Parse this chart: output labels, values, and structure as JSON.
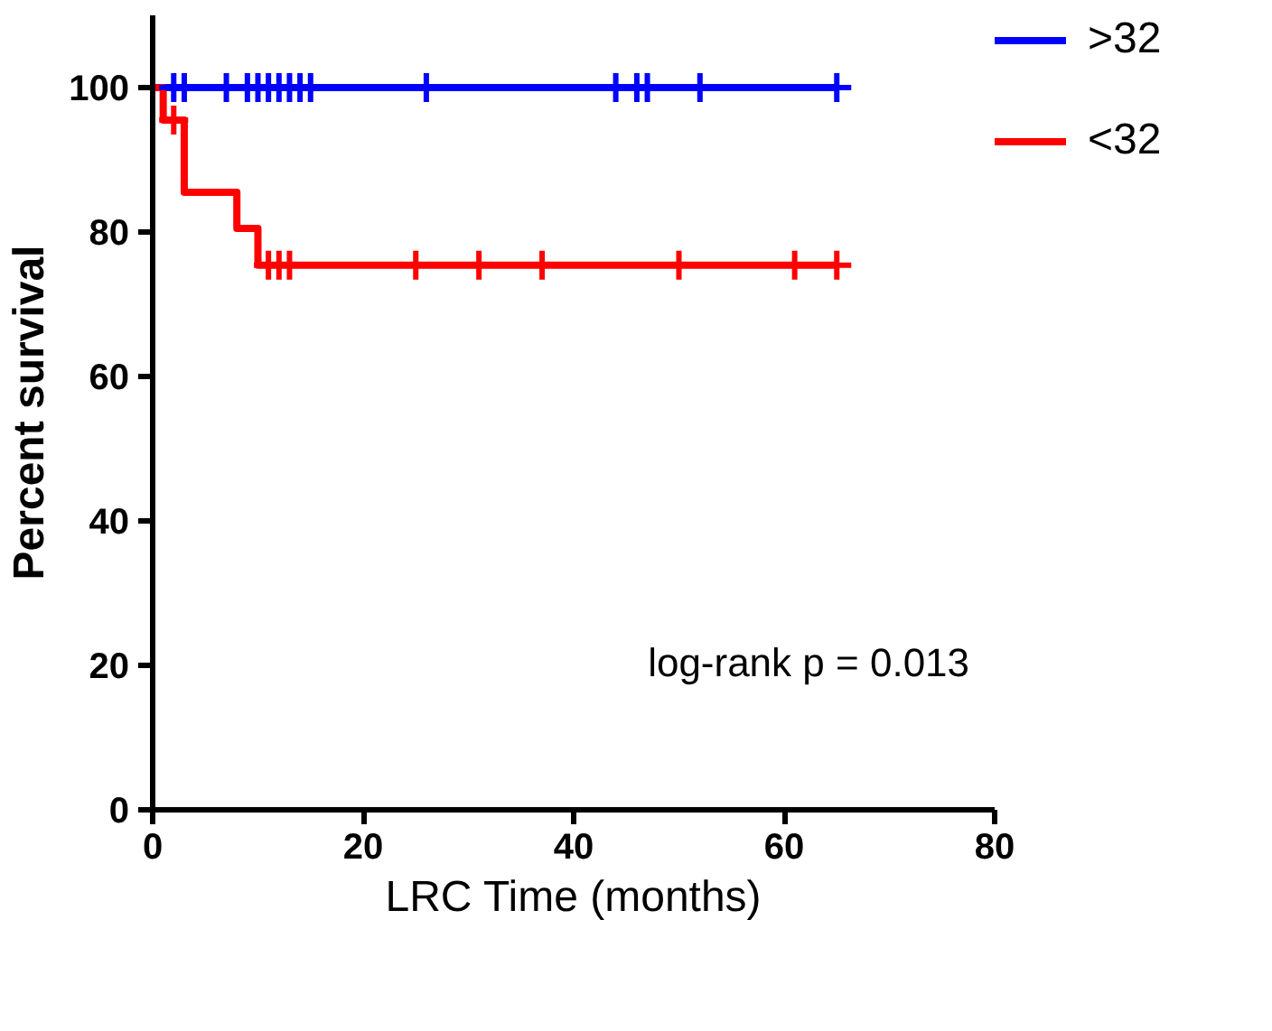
{
  "chart_data": {
    "type": "step",
    "xlabel": "LRC Time (months)",
    "ylabel": "Percent survival",
    "xlim": [
      0,
      80
    ],
    "xticks": [
      0,
      20,
      40,
      60,
      80
    ],
    "ylim": [
      0,
      110
    ],
    "yticks": [
      0,
      20,
      40,
      60,
      80,
      100
    ],
    "grid": false,
    "legend": "top right",
    "line_style": "solid",
    "annotations": [
      "log-rank p = 0.013"
    ],
    "series": [
      {
        "name": ">32",
        "color": "#0000ff",
        "x": [
          0,
          65
        ],
        "values": [
          100,
          100
        ]
      },
      {
        "name": "<32",
        "color": "#ff0000",
        "x": [
          0,
          1,
          3,
          8,
          10,
          65
        ],
        "values": [
          100,
          95.5,
          85.5,
          80.5,
          75.4,
          75.4
        ]
      },
      {
        "type": "scatter",
        "marker": "cross",
        "color": "#0000ff",
        "x": [
          2,
          3,
          7,
          9,
          10,
          11,
          12,
          13,
          14,
          15,
          26,
          44,
          46,
          47,
          52,
          65
        ],
        "values": [
          100,
          100,
          100,
          100,
          100,
          100,
          100,
          100,
          100,
          100,
          100,
          100,
          100,
          100,
          100,
          100
        ]
      },
      {
        "type": "scatter",
        "marker": "cross",
        "color": "#ff0000",
        "x": [
          2,
          11,
          12,
          13,
          25,
          31,
          37,
          50,
          61,
          65
        ],
        "values": [
          95.5,
          75.4,
          75.4,
          75.4,
          75.4,
          75.4,
          75.4,
          75.4,
          75.4,
          75.4
        ]
      }
    ]
  }
}
